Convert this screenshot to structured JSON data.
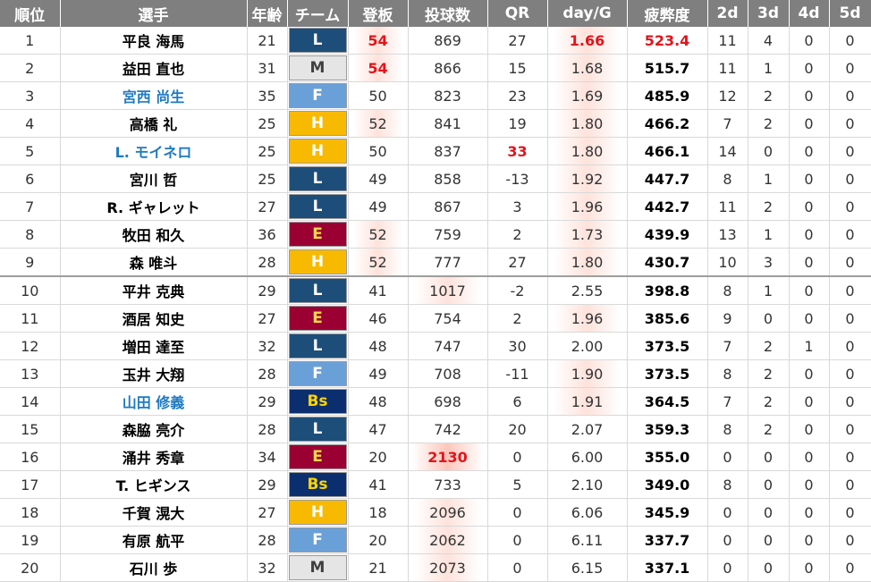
{
  "headers": [
    "順位",
    "選手",
    "年齢",
    "チーム",
    "登板",
    "投球数",
    "QR",
    "day/G",
    "疲弊度",
    "2d",
    "3d",
    "4d",
    "5d"
  ],
  "team_colors": {
    "L": "#1d4e79",
    "M": "#e5e5e5",
    "F": "#6aa0d8",
    "H": "#f8ba00",
    "E": "#9a0032",
    "Bs": "#0b2f6e"
  },
  "rows": [
    {
      "rank": "1",
      "name": "平良 海馬",
      "age": "21",
      "team": "L",
      "app": "54",
      "pitches": "869",
      "qr": "27",
      "dayg": "1.66",
      "fatigue": "523.4",
      "d2": "11",
      "d3": "4",
      "d4": "0",
      "d5": "0"
    },
    {
      "rank": "2",
      "name": "益田 直也",
      "age": "31",
      "team": "M",
      "app": "54",
      "pitches": "866",
      "qr": "15",
      "dayg": "1.68",
      "fatigue": "515.7",
      "d2": "11",
      "d3": "1",
      "d4": "0",
      "d5": "0"
    },
    {
      "rank": "3",
      "name": "宮西 尚生",
      "age": "35",
      "team": "F",
      "app": "50",
      "pitches": "823",
      "qr": "23",
      "dayg": "1.69",
      "fatigue": "485.9",
      "d2": "12",
      "d3": "2",
      "d4": "0",
      "d5": "0"
    },
    {
      "rank": "4",
      "name": "高橋 礼",
      "age": "25",
      "team": "H",
      "app": "52",
      "pitches": "841",
      "qr": "19",
      "dayg": "1.80",
      "fatigue": "466.2",
      "d2": "7",
      "d3": "2",
      "d4": "0",
      "d5": "0"
    },
    {
      "rank": "5",
      "name": "L. モイネロ",
      "age": "25",
      "team": "H",
      "app": "50",
      "pitches": "837",
      "qr": "33",
      "dayg": "1.80",
      "fatigue": "466.1",
      "d2": "14",
      "d3": "0",
      "d4": "0",
      "d5": "0"
    },
    {
      "rank": "6",
      "name": "宮川 哲",
      "age": "25",
      "team": "L",
      "app": "49",
      "pitches": "858",
      "qr": "-13",
      "dayg": "1.92",
      "fatigue": "447.7",
      "d2": "8",
      "d3": "1",
      "d4": "0",
      "d5": "0"
    },
    {
      "rank": "7",
      "name": "R. ギャレット",
      "age": "27",
      "team": "L",
      "app": "49",
      "pitches": "867",
      "qr": "3",
      "dayg": "1.96",
      "fatigue": "442.7",
      "d2": "11",
      "d3": "2",
      "d4": "0",
      "d5": "0"
    },
    {
      "rank": "8",
      "name": "牧田 和久",
      "age": "36",
      "team": "E",
      "app": "52",
      "pitches": "759",
      "qr": "2",
      "dayg": "1.73",
      "fatigue": "439.9",
      "d2": "13",
      "d3": "1",
      "d4": "0",
      "d5": "0"
    },
    {
      "rank": "9",
      "name": "森 唯斗",
      "age": "28",
      "team": "H",
      "app": "52",
      "pitches": "777",
      "qr": "27",
      "dayg": "1.80",
      "fatigue": "430.7",
      "d2": "10",
      "d3": "3",
      "d4": "0",
      "d5": "0"
    },
    {
      "rank": "10",
      "name": "平井 克典",
      "age": "29",
      "team": "L",
      "app": "41",
      "pitches": "1017",
      "qr": "-2",
      "dayg": "2.55",
      "fatigue": "398.8",
      "d2": "8",
      "d3": "1",
      "d4": "0",
      "d5": "0"
    },
    {
      "rank": "11",
      "name": "酒居 知史",
      "age": "27",
      "team": "E",
      "app": "46",
      "pitches": "754",
      "qr": "2",
      "dayg": "1.96",
      "fatigue": "385.6",
      "d2": "9",
      "d3": "0",
      "d4": "0",
      "d5": "0"
    },
    {
      "rank": "12",
      "name": "増田 達至",
      "age": "32",
      "team": "L",
      "app": "48",
      "pitches": "747",
      "qr": "30",
      "dayg": "2.00",
      "fatigue": "373.5",
      "d2": "7",
      "d3": "2",
      "d4": "1",
      "d5": "0"
    },
    {
      "rank": "13",
      "name": "玉井 大翔",
      "age": "28",
      "team": "F",
      "app": "49",
      "pitches": "708",
      "qr": "-11",
      "dayg": "1.90",
      "fatigue": "373.5",
      "d2": "8",
      "d3": "2",
      "d4": "0",
      "d5": "0"
    },
    {
      "rank": "14",
      "name": "山田 修義",
      "age": "29",
      "team": "Bs",
      "app": "48",
      "pitches": "698",
      "qr": "6",
      "dayg": "1.91",
      "fatigue": "364.5",
      "d2": "7",
      "d3": "2",
      "d4": "0",
      "d5": "0"
    },
    {
      "rank": "15",
      "name": "森脇 亮介",
      "age": "28",
      "team": "L",
      "app": "47",
      "pitches": "742",
      "qr": "20",
      "dayg": "2.07",
      "fatigue": "359.3",
      "d2": "8",
      "d3": "2",
      "d4": "0",
      "d5": "0"
    },
    {
      "rank": "16",
      "name": "涌井 秀章",
      "age": "34",
      "team": "E",
      "app": "20",
      "pitches": "2130",
      "qr": "0",
      "dayg": "6.00",
      "fatigue": "355.0",
      "d2": "0",
      "d3": "0",
      "d4": "0",
      "d5": "0"
    },
    {
      "rank": "17",
      "name": "T. ヒギンス",
      "age": "29",
      "team": "Bs",
      "app": "41",
      "pitches": "733",
      "qr": "5",
      "dayg": "2.10",
      "fatigue": "349.0",
      "d2": "8",
      "d3": "0",
      "d4": "0",
      "d5": "0"
    },
    {
      "rank": "18",
      "name": "千賀 滉大",
      "age": "27",
      "team": "H",
      "app": "18",
      "pitches": "2096",
      "qr": "0",
      "dayg": "6.06",
      "fatigue": "345.9",
      "d2": "0",
      "d3": "0",
      "d4": "0",
      "d5": "0"
    },
    {
      "rank": "19",
      "name": "有原 航平",
      "age": "28",
      "team": "F",
      "app": "20",
      "pitches": "2062",
      "qr": "0",
      "dayg": "6.11",
      "fatigue": "337.7",
      "d2": "0",
      "d3": "0",
      "d4": "0",
      "d5": "0"
    },
    {
      "rank": "20",
      "name": "石川 歩",
      "age": "32",
      "team": "M",
      "app": "21",
      "pitches": "2073",
      "qr": "0",
      "dayg": "6.15",
      "fatigue": "337.1",
      "d2": "0",
      "d3": "0",
      "d4": "0",
      "d5": "0"
    }
  ]
}
